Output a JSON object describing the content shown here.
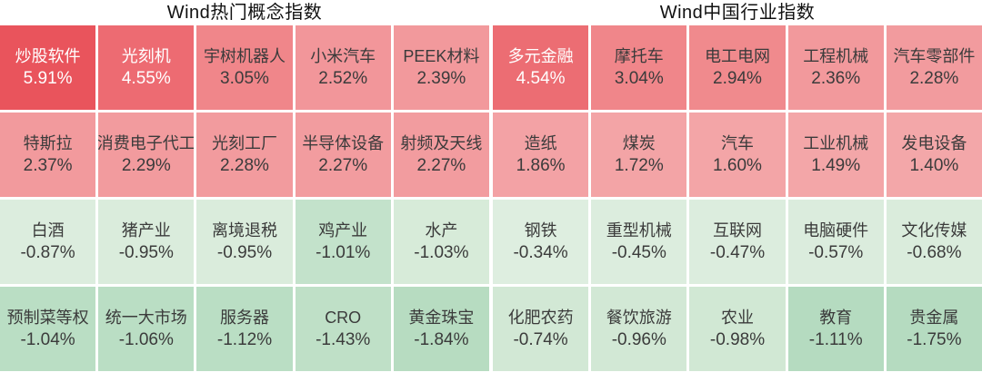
{
  "theme": {
    "page_background": "#ffffff",
    "default_text": "#3b3b3b",
    "title_text": "#111111",
    "gain_strong": "#e9545c",
    "gain_weak": "#f3a7a9",
    "loss_weak": "#deeee0",
    "loss_strong": "#b5dbc0"
  },
  "sections": [
    {
      "id": "concept",
      "title": "Wind热门概念指数",
      "cells": [
        {
          "name": "炒股软件",
          "value": "5.91%",
          "bg": "#e9545c",
          "fg": "#ffffff"
        },
        {
          "name": "光刻机",
          "value": "4.55%",
          "bg": "#ed6b72",
          "fg": "#ffffff"
        },
        {
          "name": "宇树机器人",
          "value": "3.05%",
          "bg": "#f0868a",
          "fg": "#3b3b3b"
        },
        {
          "name": "小米汽车",
          "value": "2.52%",
          "bg": "#f2969a",
          "fg": "#3b3b3b"
        },
        {
          "name": "PEEK材料",
          "value": "2.39%",
          "bg": "#f2999c",
          "fg": "#3b3b3b"
        },
        {
          "name": "特斯拉",
          "value": "2.37%",
          "bg": "#f29a9d",
          "fg": "#3b3b3b"
        },
        {
          "name": "消费电子代工",
          "value": "2.29%",
          "bg": "#f29b9e",
          "fg": "#3b3b3b"
        },
        {
          "name": "光刻工厂",
          "value": "2.28%",
          "bg": "#f29b9e",
          "fg": "#3b3b3b"
        },
        {
          "name": "半导体设备",
          "value": "2.27%",
          "bg": "#f29c9f",
          "fg": "#3b3b3b"
        },
        {
          "name": "射频及天线",
          "value": "2.27%",
          "bg": "#f29c9f",
          "fg": "#3b3b3b"
        },
        {
          "name": "白酒",
          "value": "-0.87%",
          "bg": "#dcedde",
          "fg": "#3b3b3b"
        },
        {
          "name": "猪产业",
          "value": "-0.95%",
          "bg": "#daecdc",
          "fg": "#3b3b3b"
        },
        {
          "name": "离境退税",
          "value": "-0.95%",
          "bg": "#daecdc",
          "fg": "#3b3b3b"
        },
        {
          "name": "鸡产业",
          "value": "-1.01%",
          "bg": "#c3e2cb",
          "fg": "#3b3b3b"
        },
        {
          "name": "水产",
          "value": "-1.03%",
          "bg": "#d7ebd9",
          "fg": "#3b3b3b"
        },
        {
          "name": "预制菜等权",
          "value": "-1.04%",
          "bg": "#badec4",
          "fg": "#3b3b3b"
        },
        {
          "name": "统一大市场",
          "value": "-1.06%",
          "bg": "#badec4",
          "fg": "#3b3b3b"
        },
        {
          "name": "服务器",
          "value": "-1.12%",
          "bg": "#badec4",
          "fg": "#3b3b3b"
        },
        {
          "name": "CRO",
          "value": "-1.43%",
          "bg": "#bfe0c7",
          "fg": "#3b3b3b"
        },
        {
          "name": "黄金珠宝",
          "value": "-1.84%",
          "bg": "#b7dcc1",
          "fg": "#3b3b3b"
        }
      ]
    },
    {
      "id": "industry",
      "title": "Wind中国行业指数",
      "cells": [
        {
          "name": "多元金融",
          "value": "4.54%",
          "bg": "#ec6d73",
          "fg": "#ffffff"
        },
        {
          "name": "摩托车",
          "value": "3.04%",
          "bg": "#f0868a",
          "fg": "#3b3b3b"
        },
        {
          "name": "电工电网",
          "value": "2.94%",
          "bg": "#f08a8d",
          "fg": "#3b3b3b"
        },
        {
          "name": "工程机械",
          "value": "2.36%",
          "bg": "#f2999c",
          "fg": "#3b3b3b"
        },
        {
          "name": "汽车零部件",
          "value": "2.28%",
          "bg": "#f29b9e",
          "fg": "#3b3b3b"
        },
        {
          "name": "造纸",
          "value": "1.86%",
          "bg": "#f3a2a5",
          "fg": "#3b3b3b"
        },
        {
          "name": "煤炭",
          "value": "1.72%",
          "bg": "#f3a4a6",
          "fg": "#3b3b3b"
        },
        {
          "name": "汽车",
          "value": "1.60%",
          "bg": "#f3a5a7",
          "fg": "#3b3b3b"
        },
        {
          "name": "工业机械",
          "value": "1.49%",
          "bg": "#f3a6a8",
          "fg": "#3b3b3b"
        },
        {
          "name": "发电设备",
          "value": "1.40%",
          "bg": "#f3a7a9",
          "fg": "#3b3b3b"
        },
        {
          "name": "钢铁",
          "value": "-0.34%",
          "bg": "#deeee0",
          "fg": "#3b3b3b"
        },
        {
          "name": "重型机械",
          "value": "-0.45%",
          "bg": "#dcedde",
          "fg": "#3b3b3b"
        },
        {
          "name": "互联网",
          "value": "-0.47%",
          "bg": "#dcedde",
          "fg": "#3b3b3b"
        },
        {
          "name": "电脑硬件",
          "value": "-0.57%",
          "bg": "#dbecdd",
          "fg": "#3b3b3b"
        },
        {
          "name": "文化传媒",
          "value": "-0.68%",
          "bg": "#daecdc",
          "fg": "#3b3b3b"
        },
        {
          "name": "化肥农药",
          "value": "-0.74%",
          "bg": "#d2e8d5",
          "fg": "#3b3b3b"
        },
        {
          "name": "餐饮旅游",
          "value": "-0.96%",
          "bg": "#d2e8d5",
          "fg": "#3b3b3b"
        },
        {
          "name": "农业",
          "value": "-0.98%",
          "bg": "#d1e8d4",
          "fg": "#3b3b3b"
        },
        {
          "name": "教育",
          "value": "-1.11%",
          "bg": "#b5dbc0",
          "fg": "#3b3b3b"
        },
        {
          "name": "贵金属",
          "value": "-1.75%",
          "bg": "#b5dbc0",
          "fg": "#3b3b3b"
        }
      ]
    }
  ],
  "chart_data": [
    {
      "type": "heatmap",
      "title": "Wind热门概念指数",
      "unit": "%",
      "layout": {
        "rows": 4,
        "cols": 5,
        "order": "row-major"
      },
      "color_scale": {
        "positive": "red (deeper = larger gain)",
        "negative": "green (deeper = larger loss)"
      },
      "labels": [
        "炒股软件",
        "光刻机",
        "宇树机器人",
        "小米汽车",
        "PEEK材料",
        "特斯拉",
        "消费电子代工",
        "光刻工厂",
        "半导体设备",
        "射频及天线",
        "白酒",
        "猪产业",
        "离境退税",
        "鸡产业",
        "水产",
        "预制菜等权",
        "统一大市场",
        "服务器",
        "CRO",
        "黄金珠宝"
      ],
      "values": [
        5.91,
        4.55,
        3.05,
        2.52,
        2.39,
        2.37,
        2.29,
        2.28,
        2.27,
        2.27,
        -0.87,
        -0.95,
        -0.95,
        -1.01,
        -1.03,
        -1.04,
        -1.06,
        -1.12,
        -1.43,
        -1.84
      ]
    },
    {
      "type": "heatmap",
      "title": "Wind中国行业指数",
      "unit": "%",
      "layout": {
        "rows": 4,
        "cols": 5,
        "order": "row-major"
      },
      "color_scale": {
        "positive": "red (deeper = larger gain)",
        "negative": "green (deeper = larger loss)"
      },
      "labels": [
        "多元金融",
        "摩托车",
        "电工电网",
        "工程机械",
        "汽车零部件",
        "造纸",
        "煤炭",
        "汽车",
        "工业机械",
        "发电设备",
        "钢铁",
        "重型机械",
        "互联网",
        "电脑硬件",
        "文化传媒",
        "化肥农药",
        "餐饮旅游",
        "农业",
        "教育",
        "贵金属"
      ],
      "values": [
        4.54,
        3.04,
        2.94,
        2.36,
        2.28,
        1.86,
        1.72,
        1.6,
        1.49,
        1.4,
        -0.34,
        -0.45,
        -0.47,
        -0.57,
        -0.68,
        -0.74,
        -0.96,
        -0.98,
        -1.11,
        -1.75
      ]
    }
  ]
}
